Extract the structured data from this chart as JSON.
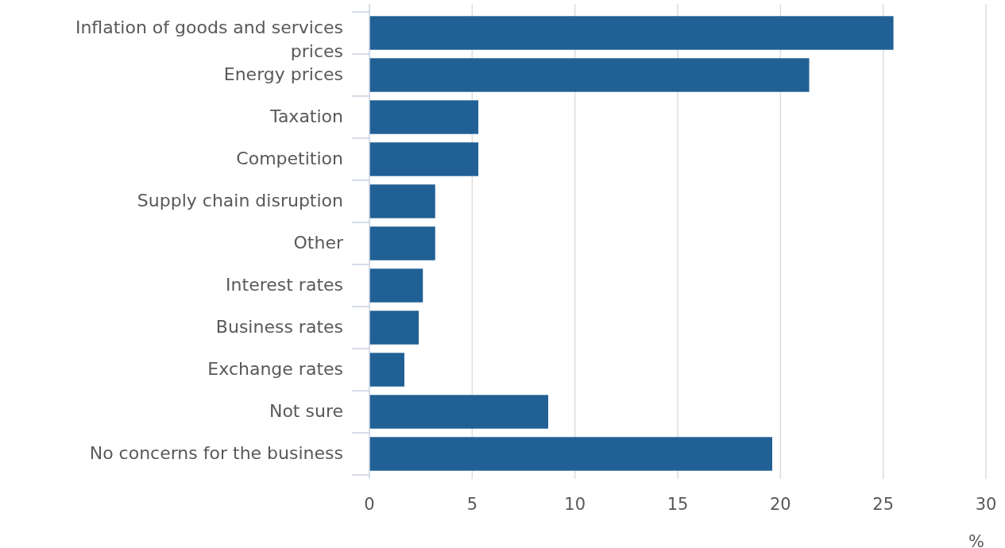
{
  "chart_data": {
    "type": "bar",
    "orientation": "horizontal",
    "xlabel": "%",
    "categories": [
      "Inflation of goods and services prices",
      "Energy prices",
      "Taxation",
      "Competition",
      "Supply chain disruption",
      "Other",
      "Interest rates",
      "Business rates",
      "Exchange rates",
      "Not sure",
      "No concerns for the business"
    ],
    "values": [
      25.5,
      21.4,
      5.3,
      5.3,
      3.2,
      3.2,
      2.6,
      2.4,
      1.7,
      8.7,
      19.6
    ],
    "color": "#206095",
    "xlim": [
      0,
      30
    ],
    "xticks": [
      0,
      5,
      10,
      15,
      20,
      25,
      30
    ],
    "grid": "x"
  }
}
